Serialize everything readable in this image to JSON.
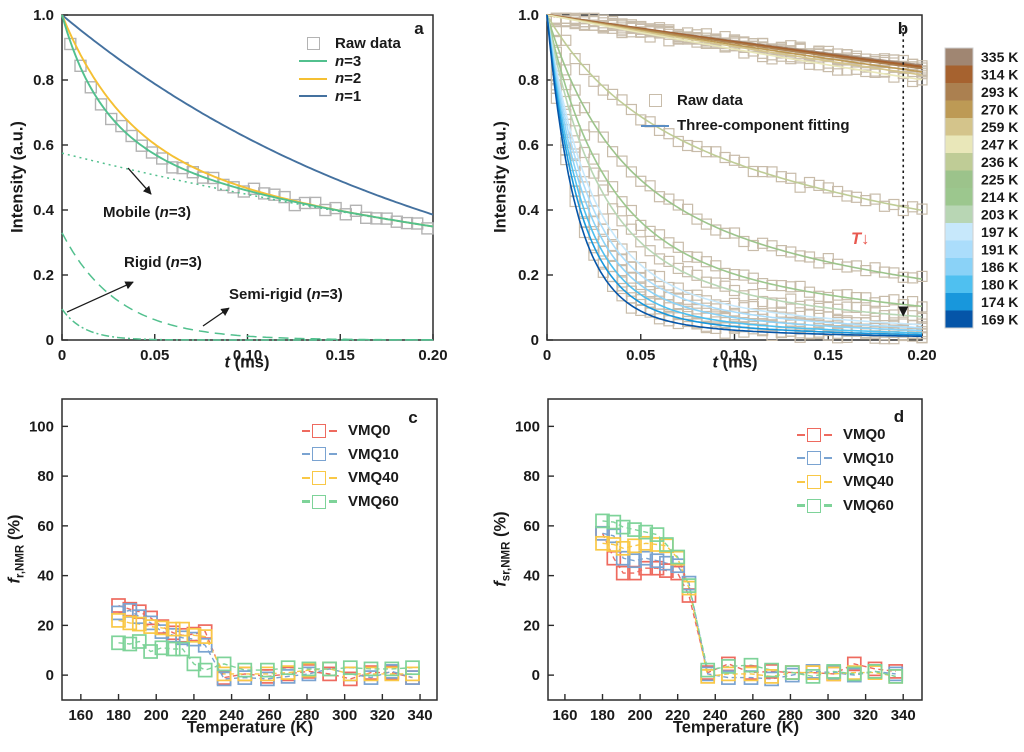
{
  "chart_data": [
    {
      "type": "line",
      "letter": "a",
      "frame": {
        "l": 62,
        "t": 15,
        "r": 433,
        "b": 340
      },
      "xlim": [
        0,
        0.2
      ],
      "ylim": [
        0,
        1
      ],
      "xlabel": {
        "it": "t",
        "rest": " (ms)"
      },
      "ylabel": "Intensity (a.u.)",
      "xticks": {
        "v": [
          0,
          0.05,
          0.1,
          0.15,
          0.2
        ],
        "labels": [
          "0",
          "0.05",
          "0.10",
          "0.15",
          "0.20"
        ]
      },
      "yticks": {
        "v": [
          0,
          0.2,
          0.4,
          0.6,
          0.8,
          1.0
        ],
        "labels": [
          "0",
          "0.2",
          "0.4",
          "0.6",
          "0.8",
          "1.0"
        ]
      },
      "raw": {
        "color": "#b3b3b3",
        "size": 11,
        "t0": 0.0045,
        "dt": 0.0055,
        "n": 36,
        "jitter": 0.011,
        "comps": [
          [
            0.575,
            0.4
          ],
          [
            0.33,
            0.03
          ],
          [
            0.095,
            0.012
          ]
        ]
      },
      "curves": [
        {
          "name": "mobile-component",
          "color": "#52c08e",
          "width": 1.5,
          "dash": "2 4",
          "comps": [
            [
              0.575,
              0.4
            ]
          ]
        },
        {
          "name": "semi-rigid-component",
          "color": "#52c08e",
          "width": 1.5,
          "dash": "10 6",
          "comps": [
            [
              0.33,
              0.03
            ]
          ]
        },
        {
          "name": "rigid-component",
          "color": "#52c08e",
          "width": 1.5,
          "dash": "8 3 2 3",
          "comps": [
            [
              0.095,
              0.012
            ]
          ]
        },
        {
          "name": "n1-fit",
          "color": "#44719f",
          "width": 1.9,
          "comps": [
            [
              1,
              0.21
            ]
          ]
        },
        {
          "name": "n2-fit",
          "color": "#f5c033",
          "width": 1.9,
          "comps": [
            [
              0.56,
              0.42
            ],
            [
              0.44,
              0.035
            ]
          ]
        },
        {
          "name": "n3-fit",
          "color": "#52c08e",
          "width": 1.9,
          "comps": [
            [
              0.575,
              0.4
            ],
            [
              0.33,
              0.03
            ],
            [
              0.095,
              0.012
            ]
          ]
        }
      ],
      "legend": {
        "raw": "Raw data",
        "items": [
          {
            "it": "n",
            "post": "=3",
            "color": "#52c08e"
          },
          {
            "it": "n",
            "post": "=2",
            "color": "#f5c033"
          },
          {
            "it": "n",
            "post": "=1",
            "color": "#44719f"
          }
        ]
      },
      "annotations": [
        {
          "pre": "Mobile (",
          "it": "n",
          "post": "=3)",
          "arrow": {
            "x1": 0.0356,
            "y1": 0.529,
            "x2": 0.048,
            "y2": 0.449
          }
        },
        {
          "pre": "Rigid (",
          "it": "n",
          "post": "=3)",
          "arrow": {
            "x1": 0.0027,
            "y1": 0.086,
            "x2": 0.0383,
            "y2": 0.178
          }
        },
        {
          "pre": "Semi-rigid (",
          "it": "n",
          "post": "=3)",
          "arrow": {
            "x1": 0.076,
            "y1": 0.043,
            "x2": 0.09,
            "y2": 0.098
          }
        }
      ]
    },
    {
      "type": "line",
      "letter": "b",
      "frame": {
        "l": 547,
        "t": 15,
        "r": 922,
        "b": 340
      },
      "xlim": [
        0,
        0.2
      ],
      "ylim": [
        0,
        1
      ],
      "xlabel": {
        "it": "t",
        "rest": " (ms)"
      },
      "ylabel": "Intensity (a.u.)",
      "xticks": {
        "v": [
          0,
          0.05,
          0.1,
          0.15,
          0.2
        ],
        "labels": [
          "0",
          "0.05",
          "0.10",
          "0.15",
          "0.20"
        ]
      },
      "yticks": {
        "v": [
          0,
          0.2,
          0.4,
          0.6,
          0.8,
          1.0
        ],
        "labels": [
          "0",
          "0.2",
          "0.4",
          "0.6",
          "0.8",
          "1.0"
        ]
      },
      "marker": {
        "color": "#c8bcaa",
        "size": 10,
        "n": 40,
        "dt": 0.005,
        "jitter": 0.012
      },
      "legend": {
        "raw": "Raw data",
        "fit": "Three-component fitting",
        "fit_color": "#5b8ec4"
      },
      "t_annotation": {
        "it": "T",
        "arrow": "↓",
        "color": "#e8584f"
      },
      "drop_arrow": {
        "x": 0.19,
        "y1": 0.96,
        "y2": 0.075
      },
      "temps": [
        {
          "T": "335 K",
          "color": "#a08672",
          "width": 2.0,
          "comps": [
            [
              1,
              1.19
            ]
          ]
        },
        {
          "T": "314 K",
          "color": "#a6622f",
          "width": 2.4,
          "comps": [
            [
              1,
              1.15
            ]
          ]
        },
        {
          "T": "293 K",
          "color": "#ab8050",
          "comps": [
            [
              1,
              1.11
            ]
          ]
        },
        {
          "T": "270 K",
          "color": "#bd9a55",
          "comps": [
            [
              1,
              1.04
            ]
          ]
        },
        {
          "T": "259 K",
          "color": "#d4c48b",
          "comps": [
            [
              1,
              0.98
            ]
          ]
        },
        {
          "T": "247 K",
          "color": "#e9e7b9",
          "comps": [
            [
              1,
              0.9
            ]
          ]
        },
        {
          "T": "236 K",
          "color": "#bfcc96",
          "comps": [
            [
              0.04,
              0.02
            ],
            [
              0.32,
              0.05
            ],
            [
              0.64,
              0.41
            ]
          ]
        },
        {
          "T": "225 K",
          "color": "#9cc38b",
          "comps": [
            [
              0.16,
              0.02
            ],
            [
              0.42,
              0.045
            ],
            [
              0.42,
              0.24
            ]
          ]
        },
        {
          "T": "214 K",
          "color": "#9cc78e",
          "comps": [
            [
              0.26,
              0.02
            ],
            [
              0.48,
              0.04
            ],
            [
              0.26,
              0.21
            ]
          ]
        },
        {
          "T": "203 K",
          "color": "#b8d6b4",
          "comps": [
            [
              0.3,
              0.019
            ],
            [
              0.5,
              0.036
            ],
            [
              0.2,
              0.19
            ]
          ]
        },
        {
          "T": "197 K",
          "color": "#c7e8fb",
          "comps": [
            [
              0.4,
              0.018
            ],
            [
              0.45,
              0.032
            ],
            [
              0.15,
              0.17
            ]
          ]
        },
        {
          "T": "191 K",
          "color": "#abddfb",
          "comps": [
            [
              0.44,
              0.017
            ],
            [
              0.43,
              0.03
            ],
            [
              0.13,
              0.16
            ]
          ]
        },
        {
          "T": "186 K",
          "color": "#8ad2f7",
          "comps": [
            [
              0.48,
              0.016
            ],
            [
              0.41,
              0.028
            ],
            [
              0.11,
              0.15
            ]
          ]
        },
        {
          "T": "180 K",
          "color": "#4fc0f0",
          "comps": [
            [
              0.51,
              0.015
            ],
            [
              0.4,
              0.026
            ],
            [
              0.09,
              0.14
            ]
          ]
        },
        {
          "T": "174 K",
          "color": "#1897dc",
          "comps": [
            [
              0.54,
              0.014
            ],
            [
              0.385,
              0.024
            ],
            [
              0.075,
              0.13
            ]
          ]
        },
        {
          "T": "169 K",
          "color": "#0555a8",
          "comps": [
            [
              0.58,
              0.013
            ],
            [
              0.36,
              0.022
            ],
            [
              0.06,
              0.12
            ]
          ]
        }
      ]
    },
    {
      "type": "scatter",
      "letter": "c",
      "frame": {
        "l": 62,
        "t": 399,
        "r": 437,
        "b": 700
      },
      "xlim": [
        150,
        349
      ],
      "ylim": [
        -10,
        111
      ],
      "xlabel": "Temperature (K)",
      "ylabel": {
        "it": "f",
        "sub": "r,NMR",
        "rest": " (%)"
      },
      "xticks": {
        "v": [
          160,
          180,
          200,
          220,
          240,
          260,
          280,
          300,
          320,
          340
        ],
        "labels": [
          "160",
          "180",
          "200",
          "220",
          "240",
          "260",
          "280",
          "300",
          "320",
          "340"
        ]
      },
      "yticks": {
        "v": [
          0,
          20,
          40,
          60,
          80,
          100
        ],
        "labels": [
          "0",
          "20",
          "40",
          "60",
          "80",
          "100"
        ]
      },
      "marker_size": 13,
      "temps": [
        180,
        186,
        191,
        197,
        203,
        209,
        214,
        220,
        226,
        236,
        247,
        259,
        270,
        281,
        292,
        303,
        314,
        325,
        336
      ],
      "series": [
        {
          "name": "VMQ0",
          "color": "#ee6a5f",
          "values": [
            28,
            26.5,
            25.5,
            23,
            19.5,
            17,
            16,
            16.5,
            17.5,
            -1,
            0.5,
            -0.5,
            0.5,
            1.5,
            0.5,
            -1.5,
            1,
            1,
            -1
          ]
        },
        {
          "name": "VMQ10",
          "color": "#7aa3d1",
          "values": [
            25,
            26,
            23.5,
            21,
            17.5,
            16,
            15,
            14.5,
            12,
            -1.5,
            -1,
            -1.5,
            -0.5,
            0.5,
            2.5,
            0.5,
            -1,
            1.5,
            -1
          ]
        },
        {
          "name": "VMQ40",
          "color": "#f9c846",
          "values": [
            22,
            21,
            20.5,
            19.5,
            19,
            18.5,
            18.5,
            16,
            15.5,
            0.5,
            0.5,
            0.5,
            1,
            2,
            2.5,
            0.5,
            0.5,
            0.5,
            0.5
          ]
        },
        {
          "name": "VMQ60",
          "color": "#7ed399",
          "values": [
            13,
            12.5,
            13.5,
            9.5,
            11,
            10.5,
            10.5,
            4.5,
            2,
            4.5,
            2,
            2,
            3,
            2.5,
            2.5,
            3,
            2.5,
            2.5,
            3
          ]
        }
      ]
    },
    {
      "type": "scatter",
      "letter": "d",
      "frame": {
        "l": 548,
        "t": 399,
        "r": 922,
        "b": 700
      },
      "xlim": [
        151,
        350
      ],
      "ylim": [
        -10,
        111
      ],
      "xlabel": "Temperature (K)",
      "ylabel": {
        "it": "f",
        "sub": "sr,NMR",
        "rest": " (%)"
      },
      "xticks": {
        "v": [
          160,
          180,
          200,
          220,
          240,
          260,
          280,
          300,
          320,
          340
        ],
        "labels": [
          "160",
          "180",
          "200",
          "220",
          "240",
          "260",
          "280",
          "300",
          "320",
          "340"
        ]
      },
      "yticks": {
        "v": [
          0,
          20,
          40,
          60,
          80,
          100
        ],
        "labels": [
          "0",
          "20",
          "40",
          "60",
          "80",
          "100"
        ]
      },
      "marker_size": 13,
      "temps": [
        180,
        186,
        191,
        197,
        203,
        209,
        214,
        220,
        226,
        236,
        247,
        259,
        270,
        281,
        292,
        303,
        314,
        325,
        336
      ],
      "series": [
        {
          "name": "VMQ0",
          "color": "#ee6a5f",
          "values": [
            57,
            47,
            41,
            41,
            43,
            43,
            42,
            41,
            32,
            1,
            4.5,
            1,
            1.5,
            1,
            1,
            0.5,
            4.5,
            2.5,
            1.5
          ]
        },
        {
          "name": "VMQ10",
          "color": "#7aa3d1",
          "values": [
            57,
            56,
            47,
            46,
            47,
            46,
            45,
            44,
            37,
            0.5,
            -1,
            -1,
            -1.5,
            0,
            1.5,
            1,
            0,
            1.5,
            0.5
          ]
        },
        {
          "name": "VMQ40",
          "color": "#f9c846",
          "values": [
            53,
            52.5,
            51,
            52,
            53,
            52.5,
            52,
            47,
            35,
            -0.5,
            0.5,
            0.5,
            -0.5,
            1,
            1,
            0.5,
            1,
            1,
            -0.5
          ]
        },
        {
          "name": "VMQ60",
          "color": "#7ed399",
          "values": [
            62,
            61.5,
            59.5,
            58.5,
            57.5,
            56.5,
            52.5,
            47.5,
            36,
            2,
            3.5,
            4,
            2,
            1,
            -0.5,
            1.5,
            0.5,
            1.5,
            -0.5
          ]
        }
      ]
    }
  ]
}
